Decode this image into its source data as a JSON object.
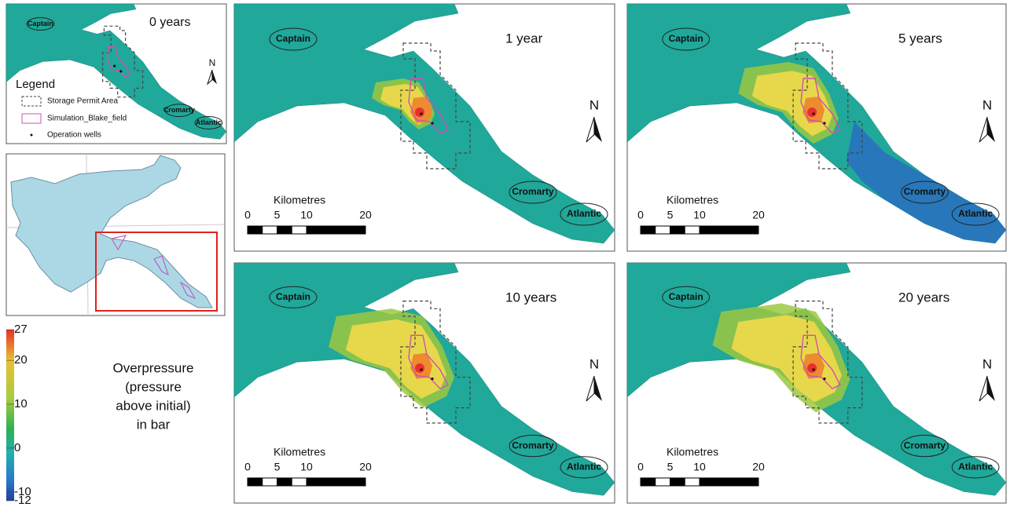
{
  "panels": [
    {
      "title": "0 years"
    },
    {
      "title": "1 year"
    },
    {
      "title": "5 years"
    },
    {
      "title": "10 years"
    },
    {
      "title": "20 years"
    }
  ],
  "places": [
    "Captain",
    "Cromarty",
    "Atlantic"
  ],
  "north": "N",
  "legend": {
    "title": "Legend",
    "items": [
      "Storage Permit Area",
      "Simulation_Blake_field",
      "Operation wells"
    ]
  },
  "scale_bar": {
    "label": "Kilometres",
    "ticks": [
      0,
      5,
      10,
      20
    ]
  },
  "colorbar": {
    "lim": [
      -12,
      27
    ],
    "ticks": [
      27,
      20,
      10,
      0,
      -10,
      -12
    ],
    "label_lines": [
      "Overpressure",
      "(pressure",
      "above initial)",
      "in bar"
    ]
  }
}
